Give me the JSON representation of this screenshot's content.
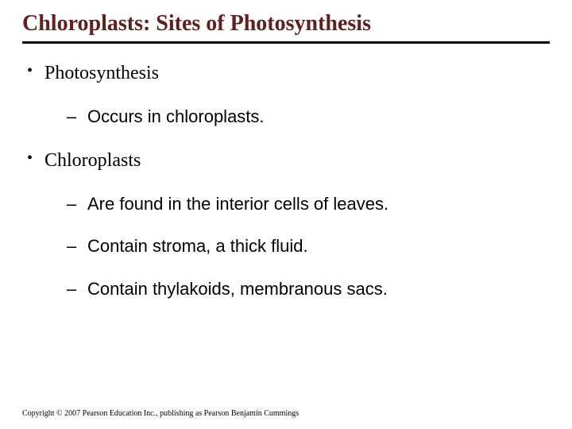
{
  "title": "Chloroplasts: Sites of Photosynthesis",
  "title_color": "#602020",
  "title_fontsize": 28,
  "rule_color": "#000000",
  "bullets": [
    {
      "label": "Photosynthesis",
      "children": [
        {
          "label": "Occurs in chloroplasts."
        }
      ]
    },
    {
      "label": "Chloroplasts",
      "children": [
        {
          "label": "Are found in the interior cells of leaves."
        },
        {
          "label": "Contain stroma, a thick fluid."
        },
        {
          "label": "Contain thylakoids, membranous sacs."
        }
      ]
    }
  ],
  "level1_bullet_char": "•",
  "level2_bullet_char": "–",
  "body_fontsize_level1": 24,
  "body_fontsize_level2": 22,
  "body_font_level1": "Times New Roman",
  "body_font_level2": "Arial",
  "background_color": "#ffffff",
  "text_color": "#000000",
  "copyright": "Copyright © 2007 Pearson Education Inc., publishing as Pearson Benjamin Cummings",
  "copyright_fontsize": 10,
  "slide_width": 720,
  "slide_height": 540
}
